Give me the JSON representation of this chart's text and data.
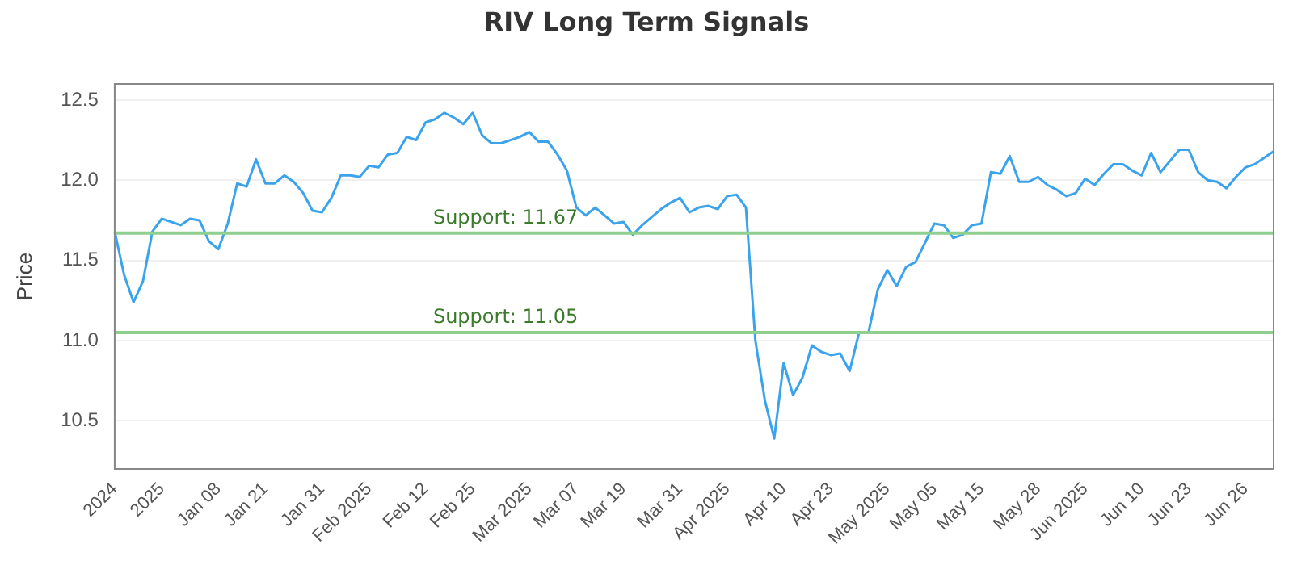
{
  "chart_data": {
    "type": "line",
    "title": "RIV Long Term Signals",
    "ylabel": "Price",
    "categories": [
      "2024",
      null,
      null,
      null,
      null,
      "2025",
      null,
      null,
      null,
      null,
      null,
      "Jan 08",
      null,
      null,
      null,
      null,
      "Jan 21",
      null,
      null,
      null,
      null,
      null,
      "Jan 31",
      null,
      null,
      null,
      null,
      "Feb 2025",
      null,
      null,
      null,
      null,
      null,
      "Feb 12",
      null,
      null,
      null,
      null,
      "Feb 25",
      null,
      null,
      null,
      null,
      null,
      "Mar 2025",
      null,
      null,
      null,
      null,
      "Mar 07",
      null,
      null,
      null,
      null,
      "Mar 19",
      null,
      null,
      null,
      null,
      null,
      "Mar 31",
      null,
      null,
      null,
      null,
      "Apr 2025",
      null,
      null,
      null,
      null,
      null,
      "Apr 10",
      null,
      null,
      null,
      null,
      "Apr 23",
      null,
      null,
      null,
      null,
      null,
      "May 2025",
      null,
      null,
      null,
      null,
      "May 05",
      null,
      null,
      null,
      null,
      "May 15",
      null,
      null,
      null,
      null,
      null,
      "May 28",
      null,
      null,
      null,
      null,
      "Jun 2025",
      null,
      null,
      null,
      null,
      null,
      "Jun 10",
      null,
      null,
      null,
      null,
      "Jun 23",
      null,
      null,
      null,
      null,
      null,
      "Jun 26",
      null,
      null,
      null
    ],
    "series": [
      {
        "color": "#3ba3ec",
        "values": [
          11.68,
          11.41,
          11.24,
          11.37,
          11.68,
          11.76,
          11.74,
          11.72,
          11.76,
          11.75,
          11.62,
          11.57,
          11.73,
          11.98,
          11.96,
          12.13,
          11.98,
          11.98,
          12.03,
          11.99,
          11.92,
          11.81,
          11.8,
          11.89,
          12.03,
          12.03,
          12.02,
          12.09,
          12.08,
          12.16,
          12.17,
          12.27,
          12.25,
          12.36,
          12.38,
          12.42,
          12.39,
          12.35,
          12.42,
          12.28,
          12.23,
          12.23,
          12.25,
          12.27,
          12.3,
          12.24,
          12.24,
          12.16,
          12.06,
          11.83,
          11.78,
          11.83,
          11.78,
          11.73,
          11.74,
          11.66,
          11.72,
          11.77,
          11.82,
          11.86,
          11.89,
          11.8,
          11.83,
          11.84,
          11.82,
          11.9,
          11.91,
          11.83,
          11.0,
          10.63,
          10.39,
          10.86,
          10.66,
          10.77,
          10.97,
          10.93,
          10.91,
          10.92,
          10.81,
          11.05,
          11.05,
          11.32,
          11.44,
          11.34,
          11.46,
          11.49,
          11.61,
          11.73,
          11.72,
          11.64,
          11.66,
          11.72,
          11.73,
          12.05,
          12.04,
          12.15,
          11.99,
          11.99,
          12.02,
          11.97,
          11.94,
          11.9,
          11.92,
          12.01,
          11.97,
          12.04,
          12.1,
          12.1,
          12.06,
          12.03,
          12.17,
          12.05,
          12.12,
          12.19,
          12.19,
          12.05,
          12.0,
          11.99,
          11.95,
          12.02,
          12.08,
          12.1,
          12.14,
          12.18
        ]
      }
    ],
    "ylim": [
      10.2,
      12.6
    ],
    "yticks": [
      10.5,
      {
        "value": 11,
        "label": "11.0"
      },
      11.5,
      {
        "value": 12,
        "label": "12.0"
      },
      12.5
    ],
    "ref_lines": [
      {
        "axis": "y",
        "value": 11.67,
        "label": "Support: 11.67",
        "color": "#8fcf8f"
      },
      {
        "axis": "y",
        "value": 11.05,
        "label": "Support: 11.05",
        "color": "#8fcf8f"
      }
    ],
    "grid": "y",
    "legend": false,
    "marker": "none",
    "line_style": "solid"
  }
}
